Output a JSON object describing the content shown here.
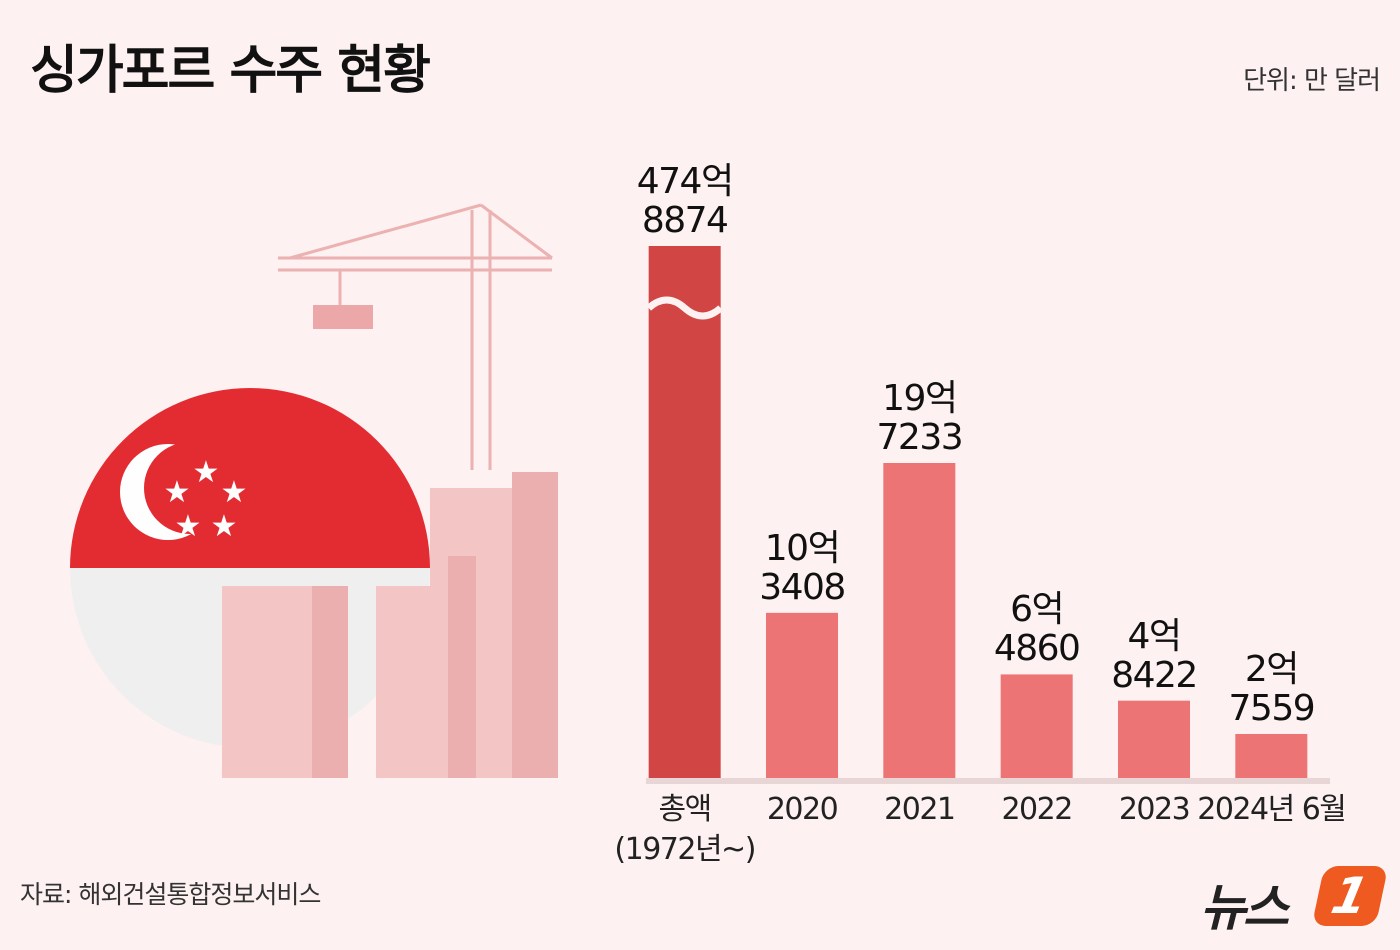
{
  "chart_data": {
    "type": "bar",
    "title": "싱가포르 수주 현황",
    "unit": "단위: 만 달러",
    "categories": [
      "총액\n(1972년~)",
      "2020",
      "2021",
      "2022",
      "2023",
      "2024년 6월"
    ],
    "values": [
      4748874,
      103408,
      197233,
      64860,
      48422,
      27559
    ],
    "value_labels": [
      "474억\n8874",
      "10억\n3408",
      "19억\n7233",
      "6억\n4860",
      "4억\n8422",
      "2억\n7559"
    ],
    "colors": [
      "#d24545",
      "#ec7474",
      "#ec7474",
      "#ec7474",
      "#ec7474",
      "#ec7474"
    ],
    "broken_bars": [
      0
    ],
    "source": "자료: 해외건설통합정보서비스"
  },
  "logo": {
    "text": "뉴스",
    "mark": "1"
  }
}
